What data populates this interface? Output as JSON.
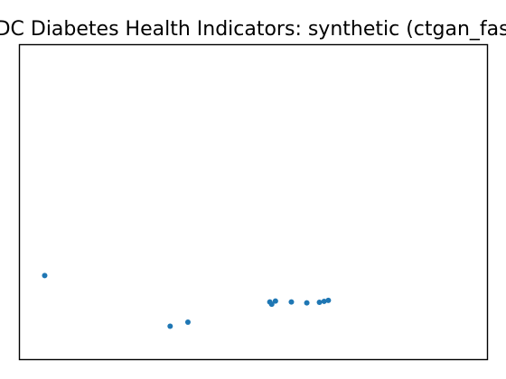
{
  "chart_data": {
    "type": "scatter",
    "title": "CDC Diabetes Health Indicators: synthetic (ctgan_fast)",
    "xlabel": "",
    "ylabel": "",
    "xlim": [
      0,
      100
    ],
    "ylim": [
      0,
      100
    ],
    "grid": false,
    "legend": "none",
    "marker_color": "#1f77b4",
    "series": [
      {
        "x": [
          5.4,
          32.2,
          36.0,
          53.5,
          53.9,
          54.7,
          58.1,
          61.4,
          64.1,
          65.1,
          66.0
        ],
        "y": [
          26.7,
          10.6,
          11.9,
          18.3,
          17.6,
          18.6,
          18.3,
          18.0,
          18.2,
          18.5,
          18.8
        ]
      }
    ]
  }
}
